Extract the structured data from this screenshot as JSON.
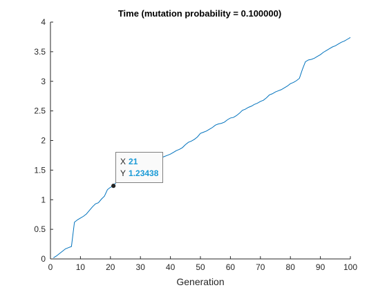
{
  "chart_data": {
    "type": "line",
    "title": "Time (mutation probability = 0.100000)",
    "xlabel": "Generation",
    "ylabel": "",
    "xlim": [
      0,
      100
    ],
    "ylim": [
      0,
      4
    ],
    "xticks": [
      0,
      10,
      20,
      30,
      40,
      50,
      60,
      70,
      80,
      90,
      100
    ],
    "yticks": [
      0,
      0.5,
      1,
      1.5,
      2,
      2.5,
      3,
      3.5,
      4
    ],
    "xtick_labels": [
      "0",
      "10",
      "20",
      "30",
      "40",
      "50",
      "60",
      "70",
      "80",
      "90",
      "100"
    ],
    "ytick_labels": [
      "0",
      "0.5",
      "1",
      "1.5",
      "2",
      "2.5",
      "3",
      "3.5",
      "4"
    ],
    "grid": false,
    "line_color": "#0072bd",
    "series": [
      {
        "x": [
          1,
          2,
          3,
          4,
          5,
          6,
          7,
          8,
          9,
          10,
          11,
          12,
          13,
          14,
          15,
          16,
          17,
          18,
          19,
          20,
          21,
          22,
          23,
          24,
          25,
          26,
          27,
          28,
          29,
          30,
          31,
          32,
          33,
          34,
          35,
          36,
          37,
          38,
          39,
          40,
          41,
          42,
          43,
          44,
          45,
          46,
          47,
          48,
          49,
          50,
          51,
          52,
          53,
          54,
          55,
          56,
          57,
          58,
          59,
          60,
          61,
          62,
          63,
          64,
          65,
          66,
          67,
          68,
          69,
          70,
          71,
          72,
          73,
          74,
          75,
          76,
          77,
          78,
          79,
          80,
          81,
          82,
          83,
          84,
          85,
          86,
          87,
          88,
          89,
          90,
          91,
          92,
          93,
          94,
          95,
          96,
          97,
          98,
          99,
          100
        ],
        "y": [
          0.02,
          0.05,
          0.09,
          0.13,
          0.17,
          0.19,
          0.21,
          0.62,
          0.66,
          0.69,
          0.72,
          0.76,
          0.82,
          0.88,
          0.93,
          0.95,
          1.01,
          1.06,
          1.17,
          1.21,
          1.23438,
          1.3,
          1.33,
          1.36,
          1.4,
          1.42,
          1.45,
          1.48,
          1.52,
          1.55,
          1.57,
          1.6,
          1.62,
          1.64,
          1.67,
          1.69,
          1.71,
          1.73,
          1.75,
          1.77,
          1.8,
          1.83,
          1.85,
          1.88,
          1.93,
          1.97,
          1.99,
          2.02,
          2.06,
          2.12,
          2.14,
          2.16,
          2.19,
          2.22,
          2.26,
          2.28,
          2.29,
          2.31,
          2.35,
          2.38,
          2.39,
          2.42,
          2.46,
          2.51,
          2.53,
          2.56,
          2.58,
          2.61,
          2.63,
          2.66,
          2.68,
          2.72,
          2.77,
          2.79,
          2.82,
          2.84,
          2.86,
          2.89,
          2.92,
          2.96,
          2.98,
          3.01,
          3.05,
          3.2,
          3.33,
          3.36,
          3.37,
          3.39,
          3.42,
          3.45,
          3.49,
          3.52,
          3.55,
          3.58,
          3.6,
          3.63,
          3.66,
          3.68,
          3.71,
          3.74
        ]
      }
    ],
    "datatip": {
      "x_label": "X",
      "x_value": "21",
      "y_label": "Y",
      "y_value": "1.23438",
      "x": 21,
      "y": 1.23438,
      "value_color": "#1a9ad6"
    }
  }
}
